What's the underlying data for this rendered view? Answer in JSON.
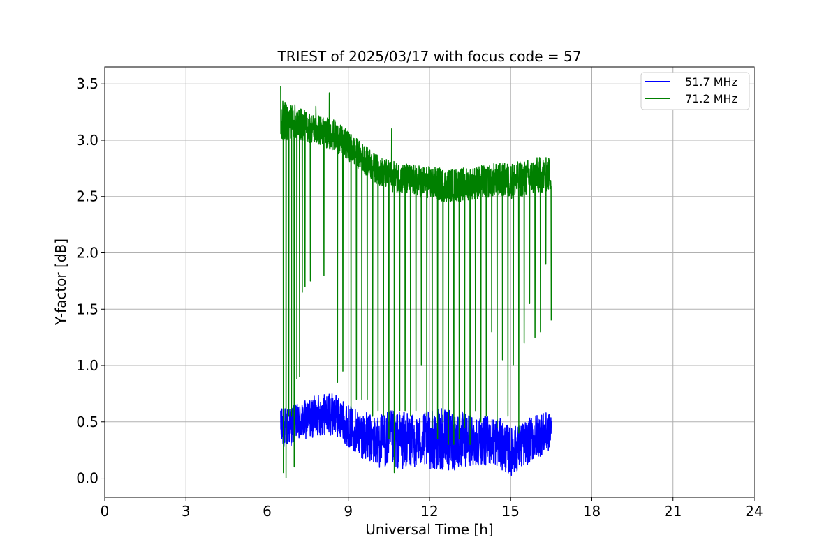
{
  "chart_data": {
    "type": "line",
    "title": "TRIEST of 2025/03/17 with focus code = 57",
    "xlabel": "Universal Time [h]",
    "ylabel": "Y-factor [dB]",
    "xlim": [
      0,
      24
    ],
    "ylim": [
      -0.17,
      3.65
    ],
    "x_ticks": [
      0,
      3,
      6,
      9,
      12,
      15,
      18,
      21,
      24
    ],
    "y_ticks": [
      0.0,
      0.5,
      1.0,
      1.5,
      2.0,
      2.5,
      3.0,
      3.5
    ],
    "x_tick_labels": [
      "0",
      "3",
      "6",
      "9",
      "12",
      "15",
      "18",
      "21",
      "24"
    ],
    "y_tick_labels": [
      "0.0",
      "0.5",
      "1.0",
      "1.5",
      "2.0",
      "2.5",
      "3.0",
      "3.5"
    ],
    "grid": true,
    "legend_position": "top-right",
    "series": [
      {
        "name": "51.7 MHz",
        "color": "#0000ff",
        "x_range": [
          6.5,
          16.5
        ],
        "envelope": {
          "x": [
            6.5,
            7.0,
            7.5,
            8.0,
            8.5,
            9.0,
            9.5,
            10.0,
            10.5,
            11.0,
            11.5,
            12.0,
            12.5,
            13.0,
            13.5,
            14.0,
            14.5,
            15.0,
            15.5,
            16.0,
            16.5
          ],
          "low": [
            0.25,
            0.3,
            0.35,
            0.38,
            0.38,
            0.28,
            0.18,
            0.1,
            0.08,
            0.08,
            0.1,
            0.08,
            0.06,
            0.07,
            0.1,
            0.12,
            0.1,
            0.02,
            0.1,
            0.18,
            0.25
          ],
          "high": [
            0.62,
            0.65,
            0.7,
            0.76,
            0.75,
            0.65,
            0.6,
            0.55,
            0.6,
            0.6,
            0.55,
            0.6,
            0.62,
            0.6,
            0.58,
            0.55,
            0.55,
            0.45,
            0.5,
            0.58,
            0.58
          ]
        }
      },
      {
        "name": "71.2 MHz",
        "color": "#008000",
        "x_range": [
          6.5,
          16.5
        ],
        "envelope": {
          "x": [
            6.5,
            7.0,
            7.5,
            8.0,
            8.5,
            9.0,
            9.5,
            10.0,
            10.5,
            11.0,
            11.5,
            12.0,
            12.5,
            13.0,
            13.5,
            14.0,
            14.5,
            15.0,
            15.5,
            16.0,
            16.5
          ],
          "low": [
            3.0,
            3.02,
            2.98,
            2.95,
            2.9,
            2.82,
            2.72,
            2.62,
            2.55,
            2.52,
            2.5,
            2.48,
            2.45,
            2.45,
            2.47,
            2.48,
            2.5,
            2.48,
            2.5,
            2.52,
            2.55
          ],
          "high": [
            3.35,
            3.32,
            3.25,
            3.22,
            3.18,
            3.08,
            2.98,
            2.88,
            2.82,
            2.8,
            2.78,
            2.77,
            2.75,
            2.75,
            2.76,
            2.78,
            2.8,
            2.8,
            2.82,
            2.85,
            2.85
          ]
        },
        "dropouts": [
          [
            6.6,
            0.05
          ],
          [
            6.7,
            0.0
          ],
          [
            6.8,
            0.55
          ],
          [
            6.9,
            0.55
          ],
          [
            7.0,
            0.1
          ],
          [
            7.1,
            0.88
          ],
          [
            7.2,
            0.9
          ],
          [
            7.3,
            1.65
          ],
          [
            7.4,
            1.7
          ],
          [
            7.6,
            1.75
          ],
          [
            8.1,
            1.8
          ],
          [
            8.3,
            1.65
          ],
          [
            8.6,
            0.85
          ],
          [
            8.8,
            0.95
          ],
          [
            9.1,
            0.6
          ],
          [
            9.3,
            0.7
          ],
          [
            9.5,
            0.7
          ],
          [
            9.7,
            0.7
          ],
          [
            9.9,
            0.55
          ],
          [
            10.1,
            0.6
          ],
          [
            10.3,
            0.55
          ],
          [
            10.5,
            0.35
          ],
          [
            10.7,
            0.05
          ],
          [
            10.9,
            0.6
          ],
          [
            11.1,
            0.6
          ],
          [
            11.3,
            0.55
          ],
          [
            11.5,
            0.6
          ],
          [
            11.7,
            1.0
          ],
          [
            11.9,
            0.55
          ],
          [
            12.1,
            0.45
          ],
          [
            12.3,
            0.35
          ],
          [
            12.5,
            0.5
          ],
          [
            12.7,
            0.3
          ],
          [
            12.9,
            0.3
          ],
          [
            13.1,
            0.35
          ],
          [
            13.3,
            0.45
          ],
          [
            13.5,
            0.3
          ],
          [
            13.7,
            0.6
          ],
          [
            13.9,
            0.5
          ],
          [
            14.1,
            0.55
          ],
          [
            14.3,
            1.3
          ],
          [
            14.5,
            0.45
          ],
          [
            14.7,
            1.05
          ],
          [
            14.9,
            0.55
          ],
          [
            15.1,
            1.0
          ],
          [
            15.3,
            0.4
          ],
          [
            15.5,
            1.2
          ],
          [
            15.7,
            1.55
          ],
          [
            15.9,
            1.25
          ],
          [
            16.1,
            1.3
          ],
          [
            16.3,
            1.9
          ],
          [
            16.5,
            1.4
          ]
        ],
        "spikes": [
          [
            6.5,
            3.48
          ],
          [
            7.8,
            3.3
          ],
          [
            8.3,
            3.42
          ],
          [
            10.6,
            3.1
          ]
        ]
      }
    ]
  }
}
